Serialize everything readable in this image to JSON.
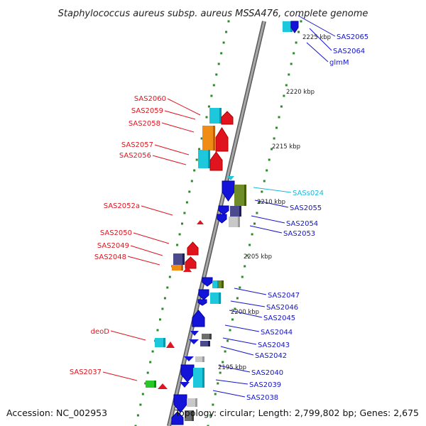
{
  "title": "Staphylococcus aureus subsp. aureus MSSA476, complete genome",
  "accession": "Accession: NC_002953",
  "summary": "Topology: circular; Length: 2,799,802 bp; Genes: 2,675",
  "colors": {
    "backbone": "#8a8a8a",
    "tick": "#2a8a2a",
    "red": "#e0141e",
    "blue": "#1414d8",
    "cyan": "#1ec8dc",
    "orange": "#f08c14",
    "olive": "#6e8c28",
    "navy": "#4a4a8c",
    "green": "#28c828",
    "gray": "#c8c8c8",
    "darkgray": "#6e6e6e",
    "label_red": "#e0141e",
    "label_blue": "#1414c8",
    "label_cyan": "#1ab8dc"
  },
  "scale_labels": [
    "2225 kbp",
    "2220 kbp",
    "2215 kbp",
    "2210 kbp",
    "2205 kbp",
    "2200 kbp",
    "2195 kbp"
  ],
  "gene_labels": {
    "left": [
      "SAS2060",
      "SAS2059",
      "SAS2058",
      "SAS2057",
      "SAS2056",
      "SAS2052a",
      "SAS2050",
      "SAS2049",
      "SAS2048",
      "deoD",
      "SAS2037"
    ],
    "right": [
      "SAS2065",
      "SAS2064",
      "glmM",
      "SASs024",
      "SAS2055",
      "SAS2054",
      "SAS2053",
      "SAS2047",
      "SAS2046",
      "SAS2045",
      "SAS2044",
      "SAS2043",
      "SAS2042",
      "SAS2040",
      "SAS2039",
      "SAS2038"
    ]
  }
}
